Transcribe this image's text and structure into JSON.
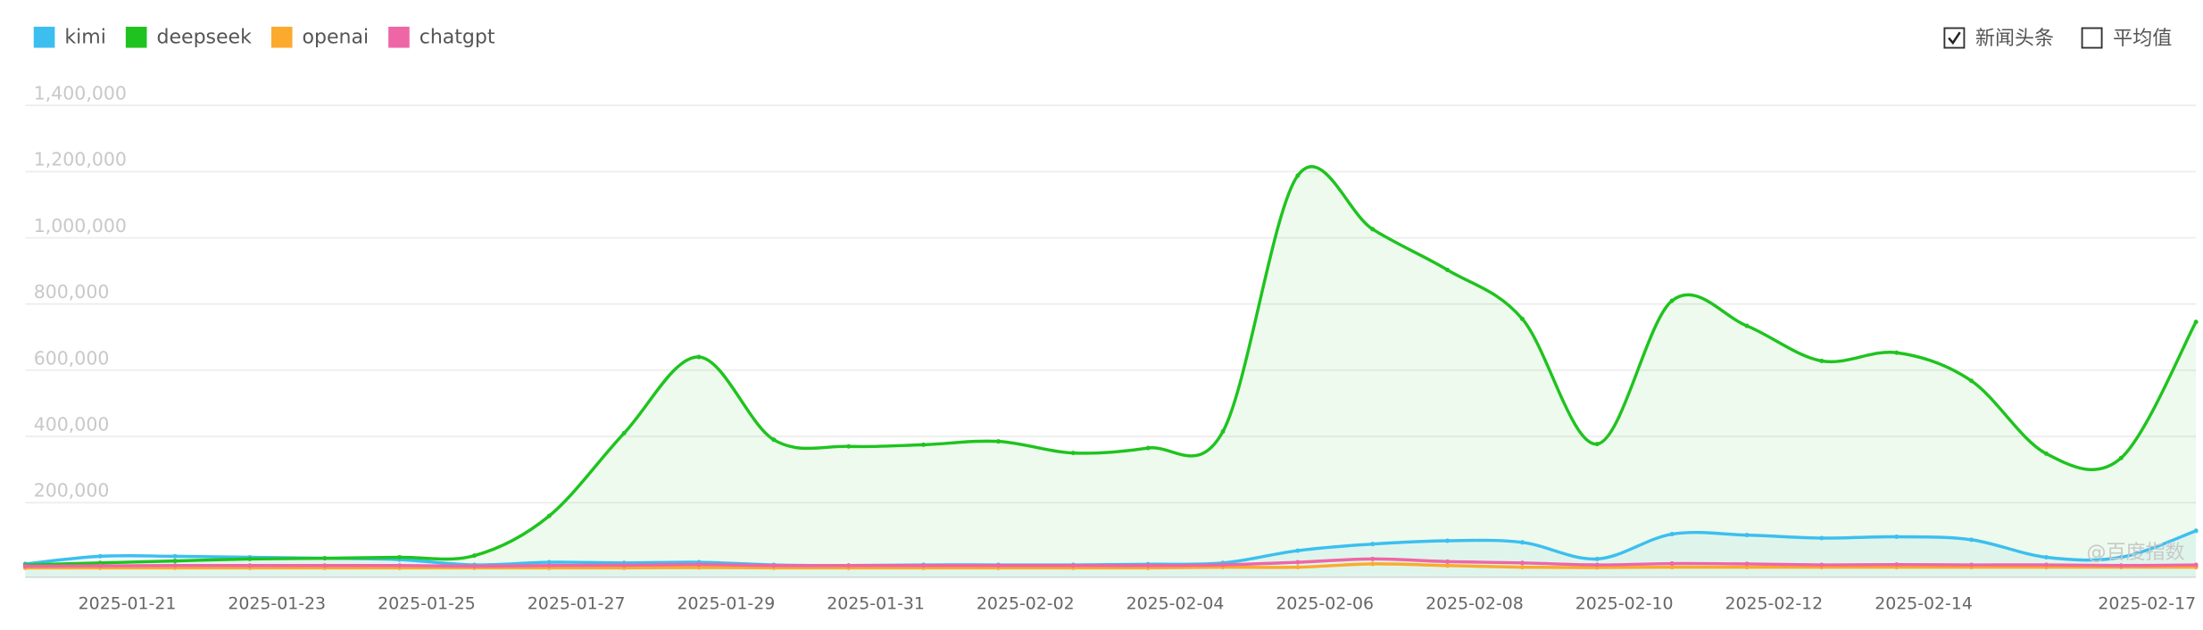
{
  "chart_data": {
    "type": "line",
    "categories": [
      null,
      null,
      "2025-01-21",
      null,
      "2025-01-23",
      null,
      "2025-01-25",
      null,
      "2025-01-27",
      null,
      "2025-01-29",
      null,
      "2025-01-31",
      null,
      "2025-02-02",
      null,
      "2025-02-04",
      null,
      "2025-02-06",
      null,
      "2025-02-08",
      null,
      "2025-02-10",
      null,
      "2025-02-12",
      null,
      "2025-02-14",
      null,
      null,
      "2025-02-17"
    ],
    "series": [
      {
        "name": "kimi",
        "color": "#3cbfef",
        "values": [
          15000,
          38000,
          38000,
          35000,
          32000,
          28000,
          12000,
          20000,
          18000,
          20000,
          12000,
          10000,
          12000,
          12000,
          12000,
          14000,
          18000,
          55000,
          75000,
          85000,
          80000,
          30000,
          105000,
          102000,
          93000,
          97000,
          88000,
          35000,
          35000,
          115000
        ]
      },
      {
        "name": "deepseek",
        "color": "#1fc31f",
        "values": [
          12000,
          18000,
          24000,
          30000,
          32000,
          35000,
          40000,
          160000,
          410000,
          640000,
          390000,
          370000,
          375000,
          385000,
          350000,
          365000,
          415000,
          1188000,
          1026000,
          903000,
          755000,
          377000,
          810000,
          734000,
          628000,
          653000,
          568000,
          348000,
          335000,
          746000
        ]
      },
      {
        "name": "openai",
        "color": "#fbaa2e",
        "values": [
          3000,
          3000,
          3000,
          3000,
          3000,
          3000,
          3000,
          3000,
          3000,
          4000,
          3000,
          3000,
          3000,
          3000,
          3000,
          3000,
          5000,
          5000,
          15000,
          10000,
          5000,
          4000,
          5000,
          5000,
          5000,
          5000,
          5000,
          5000,
          5000,
          5000
        ]
      },
      {
        "name": "chatgpt",
        "color": "#ef66a6",
        "values": [
          8000,
          9000,
          10000,
          10000,
          10000,
          10000,
          8000,
          10000,
          11000,
          13000,
          10000,
          10000,
          10000,
          10000,
          10000,
          10000,
          12000,
          20000,
          30000,
          22000,
          18000,
          12000,
          16000,
          15000,
          12000,
          13000,
          12000,
          12000,
          10000,
          12000
        ]
      }
    ],
    "ylim": [
      0,
      1400000
    ],
    "yticks": [
      {
        "value": 200000,
        "label": "200,000"
      },
      {
        "value": 400000,
        "label": "400,000"
      },
      {
        "value": 600000,
        "label": "600,000"
      },
      {
        "value": 800000,
        "label": "800,000"
      },
      {
        "value": 1000000,
        "label": "1,000,000"
      },
      {
        "value": 1200000,
        "label": "1,200,000"
      },
      {
        "value": 1400000,
        "label": "1,400,000"
      }
    ],
    "grid": true,
    "legend": "top-left"
  },
  "controls": [
    {
      "label": "新闻头条",
      "checked": true
    },
    {
      "label": "平均值",
      "checked": false
    }
  ],
  "watermark": "@百度指数"
}
